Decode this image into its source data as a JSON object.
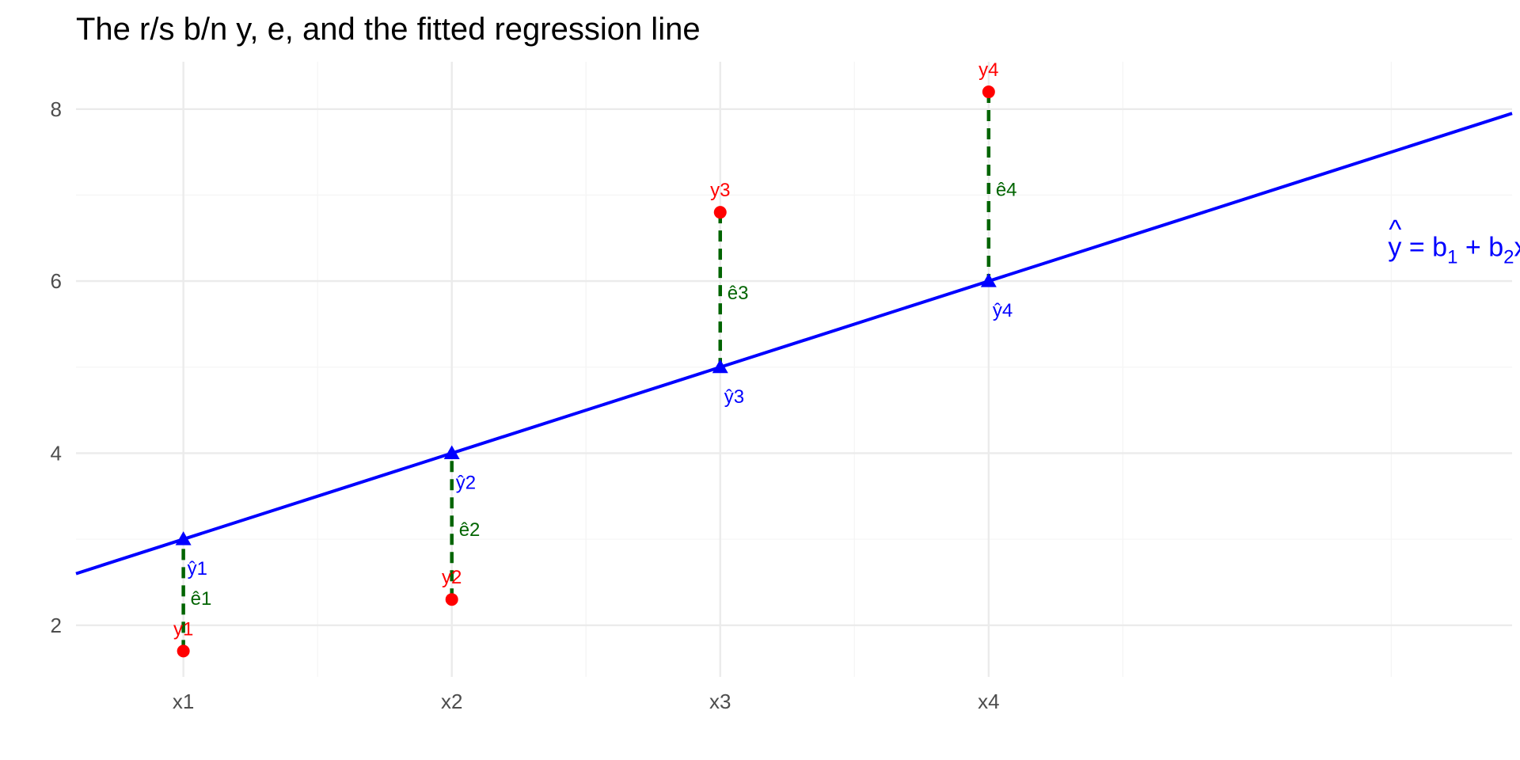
{
  "chart_data": {
    "type": "scatter",
    "title": "The r/s b/n y, e, and the fitted regression line",
    "xlabel": "",
    "ylabel": "",
    "xlim": [
      0.6,
      5.95
    ],
    "ylim": [
      1.4,
      8.55
    ],
    "x_ticks": [
      {
        "value": 1,
        "label": "x1"
      },
      {
        "value": 2,
        "label": "x2"
      },
      {
        "value": 3,
        "label": "x3"
      },
      {
        "value": 4,
        "label": "x4"
      }
    ],
    "x_minor_gridlines": [
      1.5,
      2.5,
      3.5,
      4.5,
      5.5
    ],
    "y_ticks": [
      2,
      4,
      6,
      8
    ],
    "y_minor_gridlines": [
      3,
      5,
      7
    ],
    "grid": true,
    "regression_line": {
      "intercept": 2,
      "slope": 1,
      "color": "#0000ff"
    },
    "equation_label": {
      "x": 5.5,
      "y": 6.4,
      "hat": "^",
      "y_symbol": "y",
      "equals": "=",
      "b": "b",
      "sub1": "1",
      "plus": "+",
      "sub2": "2",
      "x_symbol": "x"
    },
    "observed": [
      {
        "x": 1,
        "y": 1.7,
        "label": "y1"
      },
      {
        "x": 2,
        "y": 2.3,
        "label": "y2"
      },
      {
        "x": 3,
        "y": 6.8,
        "label": "y3"
      },
      {
        "x": 4,
        "y": 8.2,
        "label": "y4"
      }
    ],
    "fitted": [
      {
        "x": 1,
        "y": 3,
        "label": "ŷ1"
      },
      {
        "x": 2,
        "y": 4,
        "label": "ŷ2"
      },
      {
        "x": 3,
        "y": 5,
        "label": "ŷ3"
      },
      {
        "x": 4,
        "y": 6,
        "label": "ŷ4"
      }
    ],
    "residual_labels": [
      "ê1",
      "ê2",
      "ê3",
      "ê4"
    ],
    "colors": {
      "observed": "#ff0000",
      "fitted": "#0000ff",
      "residual": "#006400",
      "grid_major": "#ebebeb",
      "grid_minor": "#f5f5f5"
    }
  }
}
